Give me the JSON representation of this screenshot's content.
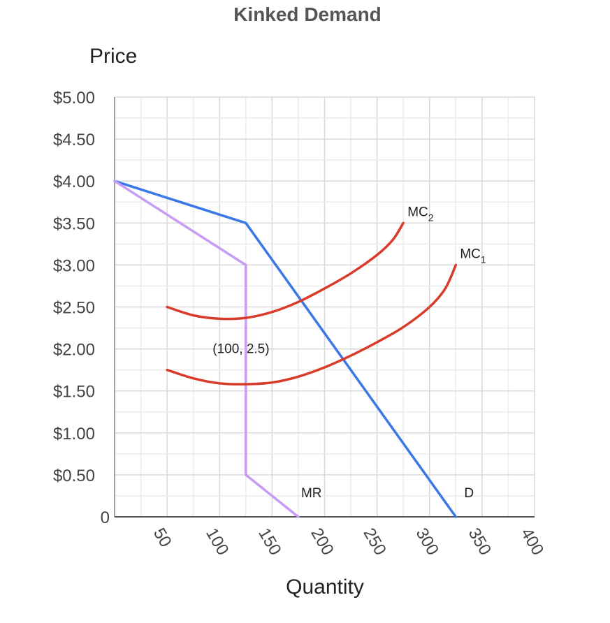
{
  "chart_data": {
    "type": "line",
    "title": "Kinked Demand",
    "xlabel": "Quantity",
    "ylabel": "Price",
    "xlim": [
      0,
      400
    ],
    "ylim": [
      0,
      5
    ],
    "grid": true,
    "x_ticks": [
      {
        "value": 50,
        "label": "50"
      },
      {
        "value": 100,
        "label": "100"
      },
      {
        "value": 150,
        "label": "150"
      },
      {
        "value": 200,
        "label": "200"
      },
      {
        "value": 250,
        "label": "250"
      },
      {
        "value": 300,
        "label": "300"
      },
      {
        "value": 350,
        "label": "350"
      },
      {
        "value": 400,
        "label": "400"
      }
    ],
    "y_ticks": [
      {
        "value": 0,
        "label": "0"
      },
      {
        "value": 0.5,
        "label": "$0.50"
      },
      {
        "value": 1,
        "label": "$1.00"
      },
      {
        "value": 1.5,
        "label": "$1.50"
      },
      {
        "value": 2,
        "label": "$2.00"
      },
      {
        "value": 2.5,
        "label": "$2.50"
      },
      {
        "value": 3,
        "label": "$3.00"
      },
      {
        "value": 3.5,
        "label": "$3.50"
      },
      {
        "value": 4,
        "label": "$4.00"
      },
      {
        "value": 4.5,
        "label": "$4.50"
      },
      {
        "value": 5,
        "label": "$5.00"
      }
    ],
    "series": [
      {
        "name": "D",
        "color": "#3b78e7",
        "x": [
          0,
          125,
          325
        ],
        "y": [
          4,
          3.5,
          0
        ]
      },
      {
        "name": "MR",
        "color": "#c69cf4",
        "x": [
          0,
          125,
          125,
          175
        ],
        "y": [
          4,
          3,
          0.5,
          0
        ]
      },
      {
        "name": "MC",
        "subscript": "2",
        "color": "#d93b2b",
        "x": [
          50,
          75,
          100,
          125,
          150,
          175,
          200,
          225,
          250,
          265,
          275
        ],
        "y": [
          2.5,
          2.4,
          2.36,
          2.37,
          2.44,
          2.56,
          2.72,
          2.9,
          3.12,
          3.3,
          3.5
        ]
      },
      {
        "name": "MC",
        "subscript": "1",
        "color": "#d93b2b",
        "x": [
          50,
          75,
          100,
          125,
          150,
          175,
          200,
          225,
          250,
          275,
          300,
          315,
          325
        ],
        "y": [
          1.75,
          1.65,
          1.59,
          1.58,
          1.6,
          1.67,
          1.78,
          1.92,
          2.08,
          2.26,
          2.5,
          2.72,
          3
        ]
      }
    ],
    "annotations": [
      {
        "text": "(100, 2.5)",
        "x": 100,
        "y": 2.0
      }
    ]
  }
}
